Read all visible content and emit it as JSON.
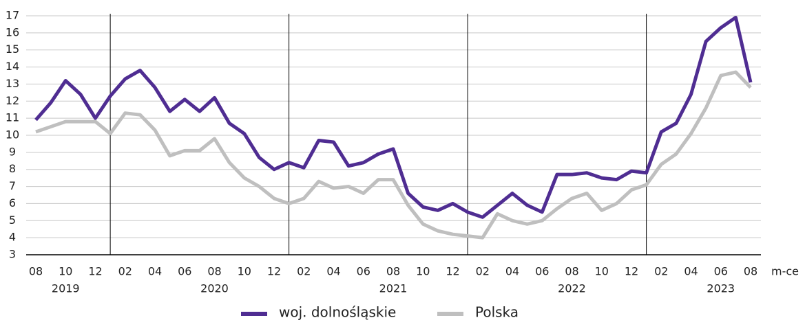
{
  "chart_data": {
    "type": "line",
    "categories": [
      "08",
      null,
      "10",
      null,
      "12",
      null,
      "02",
      null,
      "04",
      null,
      "06",
      null,
      "08",
      null,
      "10",
      null,
      "12",
      null,
      "02",
      null,
      "04",
      null,
      "06",
      null,
      "08",
      null,
      "10",
      null,
      "12",
      null,
      "02",
      null,
      "04",
      null,
      "06",
      null,
      "08",
      null,
      "10",
      null,
      "12",
      null,
      "02",
      null,
      "04",
      null,
      "06",
      null,
      "08"
    ],
    "year_labels": [
      "2019",
      "2020",
      "2021",
      "2022",
      "2023"
    ],
    "x_label": "m-ce",
    "series": [
      {
        "name": "woj. dolnośląskie",
        "color": "#4f2d92",
        "values": [
          10.9,
          11.9,
          13.2,
          12.4,
          11.0,
          12.3,
          13.3,
          13.8,
          12.8,
          11.4,
          12.1,
          11.4,
          12.2,
          10.7,
          10.1,
          8.7,
          8.0,
          8.4,
          8.1,
          9.7,
          9.6,
          8.2,
          8.4,
          8.9,
          9.2,
          6.6,
          5.8,
          5.6,
          6.0,
          5.5,
          5.2,
          5.9,
          6.6,
          5.9,
          5.5,
          7.7,
          7.7,
          7.8,
          7.5,
          7.4,
          7.9,
          7.8,
          10.2,
          10.7,
          12.4,
          15.5,
          16.3,
          16.9,
          13.1
        ]
      },
      {
        "name": "Polska",
        "color": "#bfbfbf",
        "values": [
          10.2,
          10.5,
          10.8,
          10.8,
          10.8,
          10.1,
          11.3,
          11.2,
          10.3,
          8.8,
          9.1,
          9.1,
          9.8,
          8.4,
          7.5,
          7.0,
          6.3,
          6.0,
          6.3,
          7.3,
          6.9,
          7.0,
          6.6,
          7.4,
          7.4,
          5.9,
          4.8,
          4.4,
          4.2,
          4.1,
          4.0,
          5.4,
          5.0,
          4.8,
          5.0,
          5.7,
          6.3,
          6.6,
          5.6,
          6.0,
          6.8,
          7.1,
          8.3,
          8.9,
          10.1,
          11.6,
          13.5,
          13.7,
          12.8
        ]
      }
    ],
    "ylim": [
      3,
      17
    ],
    "yticks": [
      3,
      4,
      5,
      6,
      7,
      8,
      9,
      10,
      11,
      12,
      13,
      14,
      15,
      16,
      17
    ],
    "grid": true,
    "legend": "bottom"
  }
}
